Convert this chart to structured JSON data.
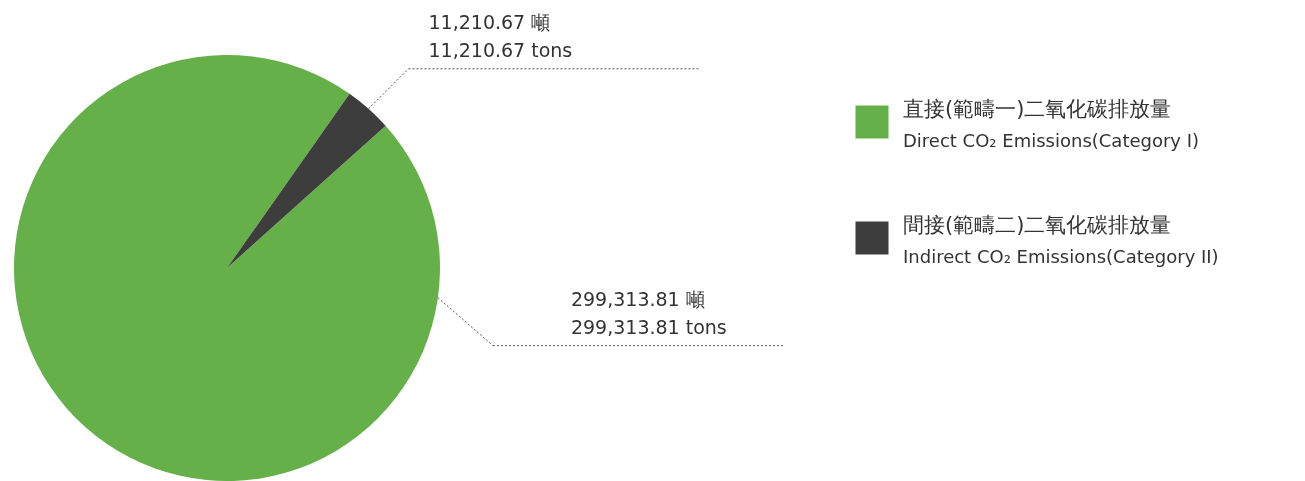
{
  "chart_data": {
    "type": "pie",
    "categories": [
      "直接(範疇一)二氧化碳排放量\nDirect CO₂ Emissions(Category I)",
      "間接(範疇二)二氧化碳排放量\nIndirect CO₂ Emissions(Category II)"
    ],
    "values": [
      299313.81,
      11210.67
    ],
    "colors": [
      "#66b04a",
      "#3d3d3d"
    ],
    "value_labels": [
      "299,313.81 噸\n299,313.81 tons",
      "11,210.67 噸\n11,210.67 tons"
    ],
    "legend": "right"
  }
}
